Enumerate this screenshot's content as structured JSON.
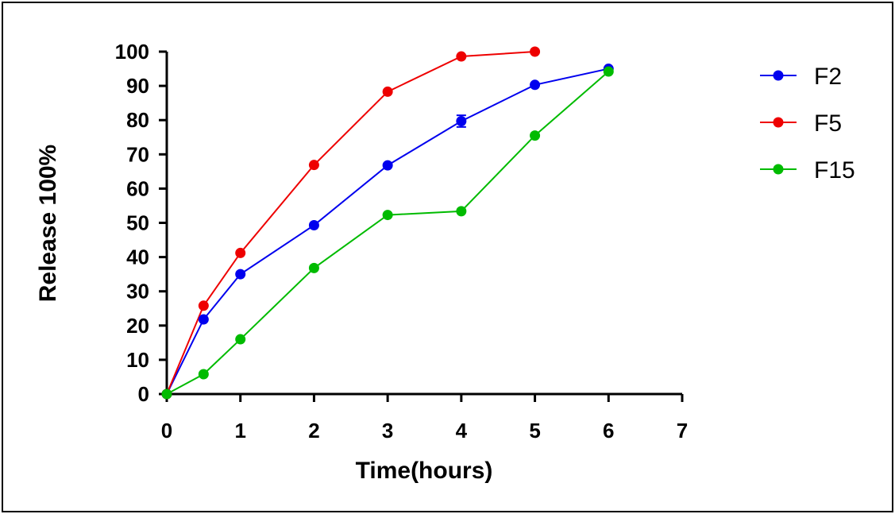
{
  "chart_data": {
    "type": "line",
    "title": "",
    "xlabel": "Time(hours)",
    "ylabel": "Release 100%",
    "xlim": [
      0,
      7
    ],
    "ylim": [
      0,
      100
    ],
    "x_ticks": [
      "0",
      "1",
      "2",
      "3",
      "4",
      "5",
      "6",
      "7"
    ],
    "y_ticks": [
      "0",
      "10",
      "20",
      "30",
      "40",
      "50",
      "60",
      "70",
      "80",
      "90",
      "100"
    ],
    "grid": false,
    "legend_position": "right",
    "series": [
      {
        "name": "F2",
        "color": "#0000ee",
        "points": [
          [
            0,
            0
          ],
          [
            0.5,
            21.8
          ],
          [
            1,
            35
          ],
          [
            2,
            49.3
          ],
          [
            3,
            66.8
          ],
          [
            4,
            79.7
          ],
          [
            5,
            90.3
          ],
          [
            6,
            95
          ]
        ],
        "error_bars": [
          [
            4,
            1.7
          ]
        ]
      },
      {
        "name": "F5",
        "color": "#ee0000",
        "points": [
          [
            0,
            0
          ],
          [
            0.5,
            25.8
          ],
          [
            1,
            41.2
          ],
          [
            2,
            66.9
          ],
          [
            3,
            88.3
          ],
          [
            4,
            98.6
          ],
          [
            5,
            100
          ]
        ],
        "error_bars": []
      },
      {
        "name": "F15",
        "color": "#00bb00",
        "points": [
          [
            0,
            0
          ],
          [
            0.5,
            5.8
          ],
          [
            1,
            16
          ],
          [
            2,
            36.8
          ],
          [
            3,
            52.3
          ],
          [
            4,
            53.4
          ],
          [
            5,
            75.5
          ],
          [
            6,
            94.2
          ]
        ],
        "error_bars": []
      }
    ]
  }
}
